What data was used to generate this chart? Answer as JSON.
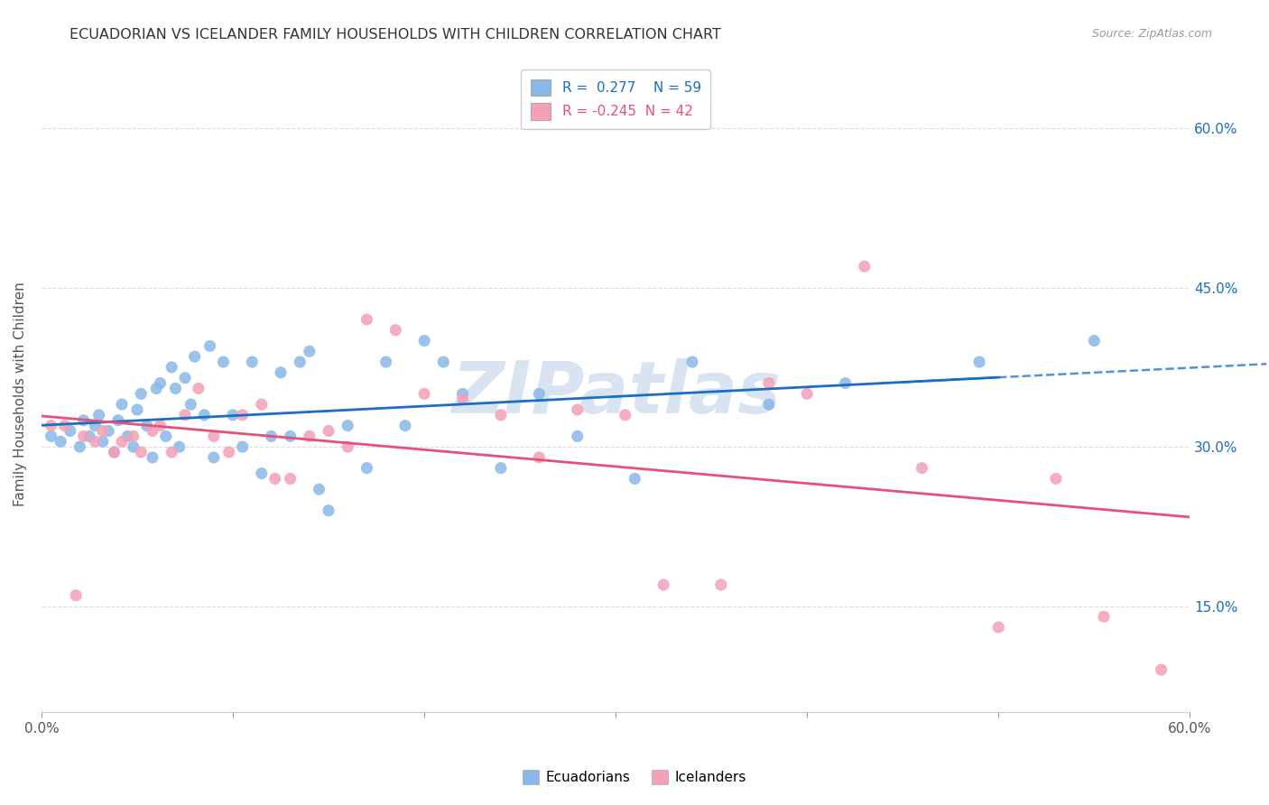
{
  "title": "ECUADORIAN VS ICELANDER FAMILY HOUSEHOLDS WITH CHILDREN CORRELATION CHART",
  "source": "Source: ZipAtlas.com",
  "ylabel": "Family Households with Children",
  "xlim": [
    0.0,
    0.6
  ],
  "ylim": [
    0.05,
    0.65
  ],
  "yticks": [
    0.15,
    0.3,
    0.45,
    0.6
  ],
  "ytick_labels_right": [
    "15.0%",
    "30.0%",
    "45.0%",
    "60.0%"
  ],
  "xtick_positions": [
    0.0,
    0.6
  ],
  "xtick_labels": [
    "0.0%",
    "60.0%"
  ],
  "r_ecuadorian": 0.277,
  "n_ecuadorian": 59,
  "r_icelander": -0.245,
  "n_icelander": 42,
  "color_ecuadorian": "#8ab8e8",
  "color_icelander": "#f4a0b5",
  "line_color_ecuadorian": "#1a6fc4",
  "line_color_icelander": "#e8507a",
  "background_color": "#ffffff",
  "grid_color": "#dddddd",
  "watermark": "ZIPatlas",
  "legend_label_ecuadorian": "Ecuadorians",
  "legend_label_icelander": "Icelanders",
  "ecuadorian_x": [
    0.005,
    0.01,
    0.015,
    0.02,
    0.022,
    0.025,
    0.028,
    0.03,
    0.032,
    0.035,
    0.038,
    0.04,
    0.042,
    0.045,
    0.048,
    0.05,
    0.052,
    0.055,
    0.058,
    0.06,
    0.062,
    0.065,
    0.068,
    0.07,
    0.072,
    0.075,
    0.078,
    0.08,
    0.085,
    0.088,
    0.09,
    0.095,
    0.1,
    0.105,
    0.11,
    0.115,
    0.12,
    0.125,
    0.13,
    0.135,
    0.14,
    0.145,
    0.15,
    0.16,
    0.17,
    0.18,
    0.19,
    0.2,
    0.21,
    0.22,
    0.24,
    0.26,
    0.28,
    0.31,
    0.34,
    0.38,
    0.42,
    0.49,
    0.55
  ],
  "ecuadorian_y": [
    0.31,
    0.305,
    0.315,
    0.3,
    0.325,
    0.31,
    0.32,
    0.33,
    0.305,
    0.315,
    0.295,
    0.325,
    0.34,
    0.31,
    0.3,
    0.335,
    0.35,
    0.32,
    0.29,
    0.355,
    0.36,
    0.31,
    0.375,
    0.355,
    0.3,
    0.365,
    0.34,
    0.385,
    0.33,
    0.395,
    0.29,
    0.38,
    0.33,
    0.3,
    0.38,
    0.275,
    0.31,
    0.37,
    0.31,
    0.38,
    0.39,
    0.26,
    0.24,
    0.32,
    0.28,
    0.38,
    0.32,
    0.4,
    0.38,
    0.35,
    0.28,
    0.35,
    0.31,
    0.27,
    0.38,
    0.34,
    0.36,
    0.38,
    0.4
  ],
  "icelander_x": [
    0.005,
    0.012,
    0.018,
    0.022,
    0.028,
    0.032,
    0.038,
    0.042,
    0.048,
    0.052,
    0.058,
    0.062,
    0.068,
    0.075,
    0.082,
    0.09,
    0.098,
    0.105,
    0.115,
    0.122,
    0.13,
    0.14,
    0.15,
    0.16,
    0.17,
    0.185,
    0.2,
    0.22,
    0.24,
    0.26,
    0.28,
    0.305,
    0.325,
    0.355,
    0.38,
    0.4,
    0.43,
    0.46,
    0.5,
    0.53,
    0.555,
    0.585
  ],
  "icelander_y": [
    0.32,
    0.32,
    0.16,
    0.31,
    0.305,
    0.315,
    0.295,
    0.305,
    0.31,
    0.295,
    0.315,
    0.32,
    0.295,
    0.33,
    0.355,
    0.31,
    0.295,
    0.33,
    0.34,
    0.27,
    0.27,
    0.31,
    0.315,
    0.3,
    0.42,
    0.41,
    0.35,
    0.345,
    0.33,
    0.29,
    0.335,
    0.33,
    0.17,
    0.17,
    0.36,
    0.35,
    0.47,
    0.28,
    0.13,
    0.27,
    0.14,
    0.09
  ]
}
